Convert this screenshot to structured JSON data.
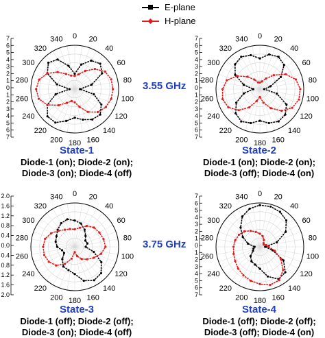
{
  "legend": [
    {
      "name": "E-plane",
      "color": "#000000",
      "marker": "square"
    },
    {
      "name": "H-plane",
      "color": "#e31a1c",
      "marker": "diamond"
    }
  ],
  "frequency_labels": [
    "3.55 GHz",
    "3.75 GHz"
  ],
  "chart_data": [
    {
      "type": "polar",
      "state_label": "State-1",
      "diode_lines": [
        "Diode-1 (on); Diode-2 (on);",
        "Diode-3 (on); Diode-4 (off)"
      ],
      "angle_ticks": [
        0,
        20,
        40,
        60,
        80,
        100,
        120,
        140,
        160,
        180,
        200,
        220,
        240,
        260,
        280,
        300,
        320,
        340
      ],
      "radial_tick_labels": [
        "7",
        "6",
        "5",
        "4",
        "3",
        "2",
        "1",
        "0",
        "1",
        "2",
        "3",
        "4",
        "5",
        "6",
        "7"
      ],
      "series": [
        {
          "name": "E-plane",
          "angles": [
            0,
            15,
            30,
            45,
            60,
            75,
            90,
            105,
            120,
            135,
            150,
            165,
            180,
            195,
            210,
            225,
            240,
            255,
            270,
            285,
            300,
            315,
            330,
            345
          ],
          "r": [
            0.35,
            0.58,
            0.75,
            0.82,
            0.72,
            0.4,
            0.12,
            0.45,
            0.7,
            0.82,
            0.8,
            0.72,
            0.65,
            0.75,
            0.88,
            0.88,
            0.72,
            0.45,
            0.12,
            0.42,
            0.72,
            0.85,
            0.78,
            0.55
          ]
        },
        {
          "name": "H-plane",
          "angles": [
            0,
            15,
            30,
            45,
            60,
            75,
            90,
            105,
            120,
            135,
            150,
            165,
            180,
            195,
            210,
            225,
            240,
            255,
            270,
            285,
            300,
            315,
            330,
            345
          ],
          "r": [
            0.3,
            0.35,
            0.48,
            0.65,
            0.8,
            0.86,
            0.87,
            0.86,
            0.82,
            0.74,
            0.6,
            0.42,
            0.3,
            0.28,
            0.36,
            0.52,
            0.72,
            0.85,
            0.88,
            0.84,
            0.72,
            0.55,
            0.4,
            0.32
          ]
        }
      ]
    },
    {
      "type": "polar",
      "state_label": "State-2",
      "diode_lines": [
        "Diode-1 (on); Diode-2 (on);",
        "Diode-3 (off); Diode-4 (on)"
      ],
      "angle_ticks": [
        0,
        20,
        40,
        60,
        80,
        100,
        120,
        140,
        160,
        180,
        200,
        220,
        240,
        260,
        280,
        300,
        320,
        340
      ],
      "radial_tick_labels": [
        "7",
        "6",
        "5",
        "4",
        "3",
        "2",
        "1",
        "0",
        "1",
        "2",
        "3",
        "4",
        "5",
        "6",
        "7"
      ],
      "series": [
        {
          "name": "E-plane",
          "angles": [
            0,
            15,
            30,
            45,
            60,
            75,
            90,
            105,
            120,
            135,
            150,
            165,
            180,
            195,
            210,
            225,
            240,
            255,
            270,
            285,
            300,
            315,
            330,
            345
          ],
          "r": [
            0.7,
            0.82,
            0.85,
            0.78,
            0.55,
            0.25,
            0.1,
            0.4,
            0.7,
            0.82,
            0.85,
            0.8,
            0.72,
            0.8,
            0.85,
            0.78,
            0.62,
            0.38,
            0.15,
            0.38,
            0.65,
            0.8,
            0.85,
            0.8
          ]
        },
        {
          "name": "H-plane",
          "angles": [
            0,
            15,
            30,
            45,
            60,
            75,
            90,
            105,
            120,
            135,
            150,
            165,
            180,
            195,
            210,
            225,
            240,
            255,
            270,
            285,
            300,
            315,
            330,
            345
          ],
          "r": [
            0.15,
            0.18,
            0.28,
            0.45,
            0.68,
            0.85,
            0.92,
            0.92,
            0.85,
            0.7,
            0.5,
            0.32,
            0.18,
            0.28,
            0.48,
            0.68,
            0.83,
            0.88,
            0.85,
            0.78,
            0.6,
            0.4,
            0.25,
            0.16
          ]
        }
      ]
    },
    {
      "type": "polar",
      "state_label": "State-3",
      "diode_lines": [
        "Diode-1 (off); Diode-2 (off);",
        "Diode-3 (on); Diode-4 (off)"
      ],
      "angle_ticks": [
        0,
        20,
        40,
        60,
        80,
        100,
        120,
        140,
        160,
        180,
        200,
        220,
        240,
        260,
        280,
        300,
        320,
        340
      ],
      "radial_tick_labels": [
        "2.0",
        "1.6",
        "1.2",
        "0.8",
        "0.4",
        "0.0",
        "0.4",
        "0.8",
        "1.2",
        "1.6",
        "2.0"
      ],
      "series": [
        {
          "name": "E-plane",
          "angles": [
            0,
            15,
            30,
            45,
            60,
            75,
            90,
            105,
            120,
            135,
            150,
            165,
            180,
            195,
            210,
            225,
            240,
            255,
            270,
            285,
            300,
            315,
            330,
            345
          ],
          "r": [
            0.6,
            0.55,
            0.45,
            0.35,
            0.28,
            0.3,
            0.25,
            0.45,
            0.7,
            0.85,
            0.88,
            0.8,
            0.62,
            0.55,
            0.52,
            0.4,
            0.28,
            0.3,
            0.4,
            0.45,
            0.48,
            0.55,
            0.62,
            0.65
          ]
        },
        {
          "name": "H-plane",
          "angles": [
            0,
            15,
            30,
            45,
            60,
            75,
            90,
            105,
            120,
            135,
            150,
            165,
            180,
            195,
            210,
            225,
            240,
            255,
            270,
            285,
            300,
            315,
            330,
            345
          ],
          "r": [
            0.4,
            0.45,
            0.55,
            0.62,
            0.65,
            0.68,
            0.7,
            0.62,
            0.5,
            0.4,
            0.32,
            0.22,
            0.12,
            0.28,
            0.45,
            0.6,
            0.68,
            0.72,
            0.72,
            0.7,
            0.62,
            0.52,
            0.45,
            0.42
          ]
        }
      ]
    },
    {
      "type": "polar",
      "state_label": "State-4",
      "diode_lines": [
        "Diode-1 (off); Diode-2 (off);",
        "Diode-3 (off); Diode-4 (on)"
      ],
      "angle_ticks": [
        0,
        20,
        40,
        60,
        80,
        100,
        120,
        140,
        160,
        180,
        200,
        220,
        240,
        260,
        280,
        300,
        320,
        340
      ],
      "radial_tick_labels": [
        "7",
        "6",
        "5",
        "4",
        "3",
        "2",
        "1",
        "0",
        "1",
        "2",
        "3",
        "4",
        "5",
        "6",
        "7"
      ],
      "series": [
        {
          "name": "E-plane",
          "angles": [
            0,
            15,
            30,
            45,
            60,
            75,
            90,
            105,
            120,
            135,
            150,
            165,
            180,
            195,
            210,
            225,
            240,
            255,
            270,
            285,
            300,
            315,
            330,
            345
          ],
          "r": [
            0.95,
            0.95,
            0.92,
            0.85,
            0.68,
            0.4,
            0.12,
            0.3,
            0.62,
            0.82,
            0.85,
            0.7,
            0.5,
            0.42,
            0.38,
            0.3,
            0.18,
            0.15,
            0.12,
            0.28,
            0.45,
            0.62,
            0.8,
            0.9
          ]
        },
        {
          "name": "H-plane",
          "angles": [
            0,
            15,
            30,
            45,
            60,
            75,
            90,
            105,
            120,
            135,
            150,
            165,
            180,
            195,
            210,
            225,
            240,
            255,
            270,
            285,
            300,
            315,
            330,
            345
          ],
          "r": [
            0.3,
            0.25,
            0.18,
            0.12,
            0.1,
            0.15,
            0.2,
            0.35,
            0.55,
            0.75,
            0.88,
            0.9,
            0.85,
            0.8,
            0.75,
            0.7,
            0.65,
            0.62,
            0.6,
            0.58,
            0.55,
            0.5,
            0.42,
            0.35
          ]
        }
      ]
    }
  ]
}
